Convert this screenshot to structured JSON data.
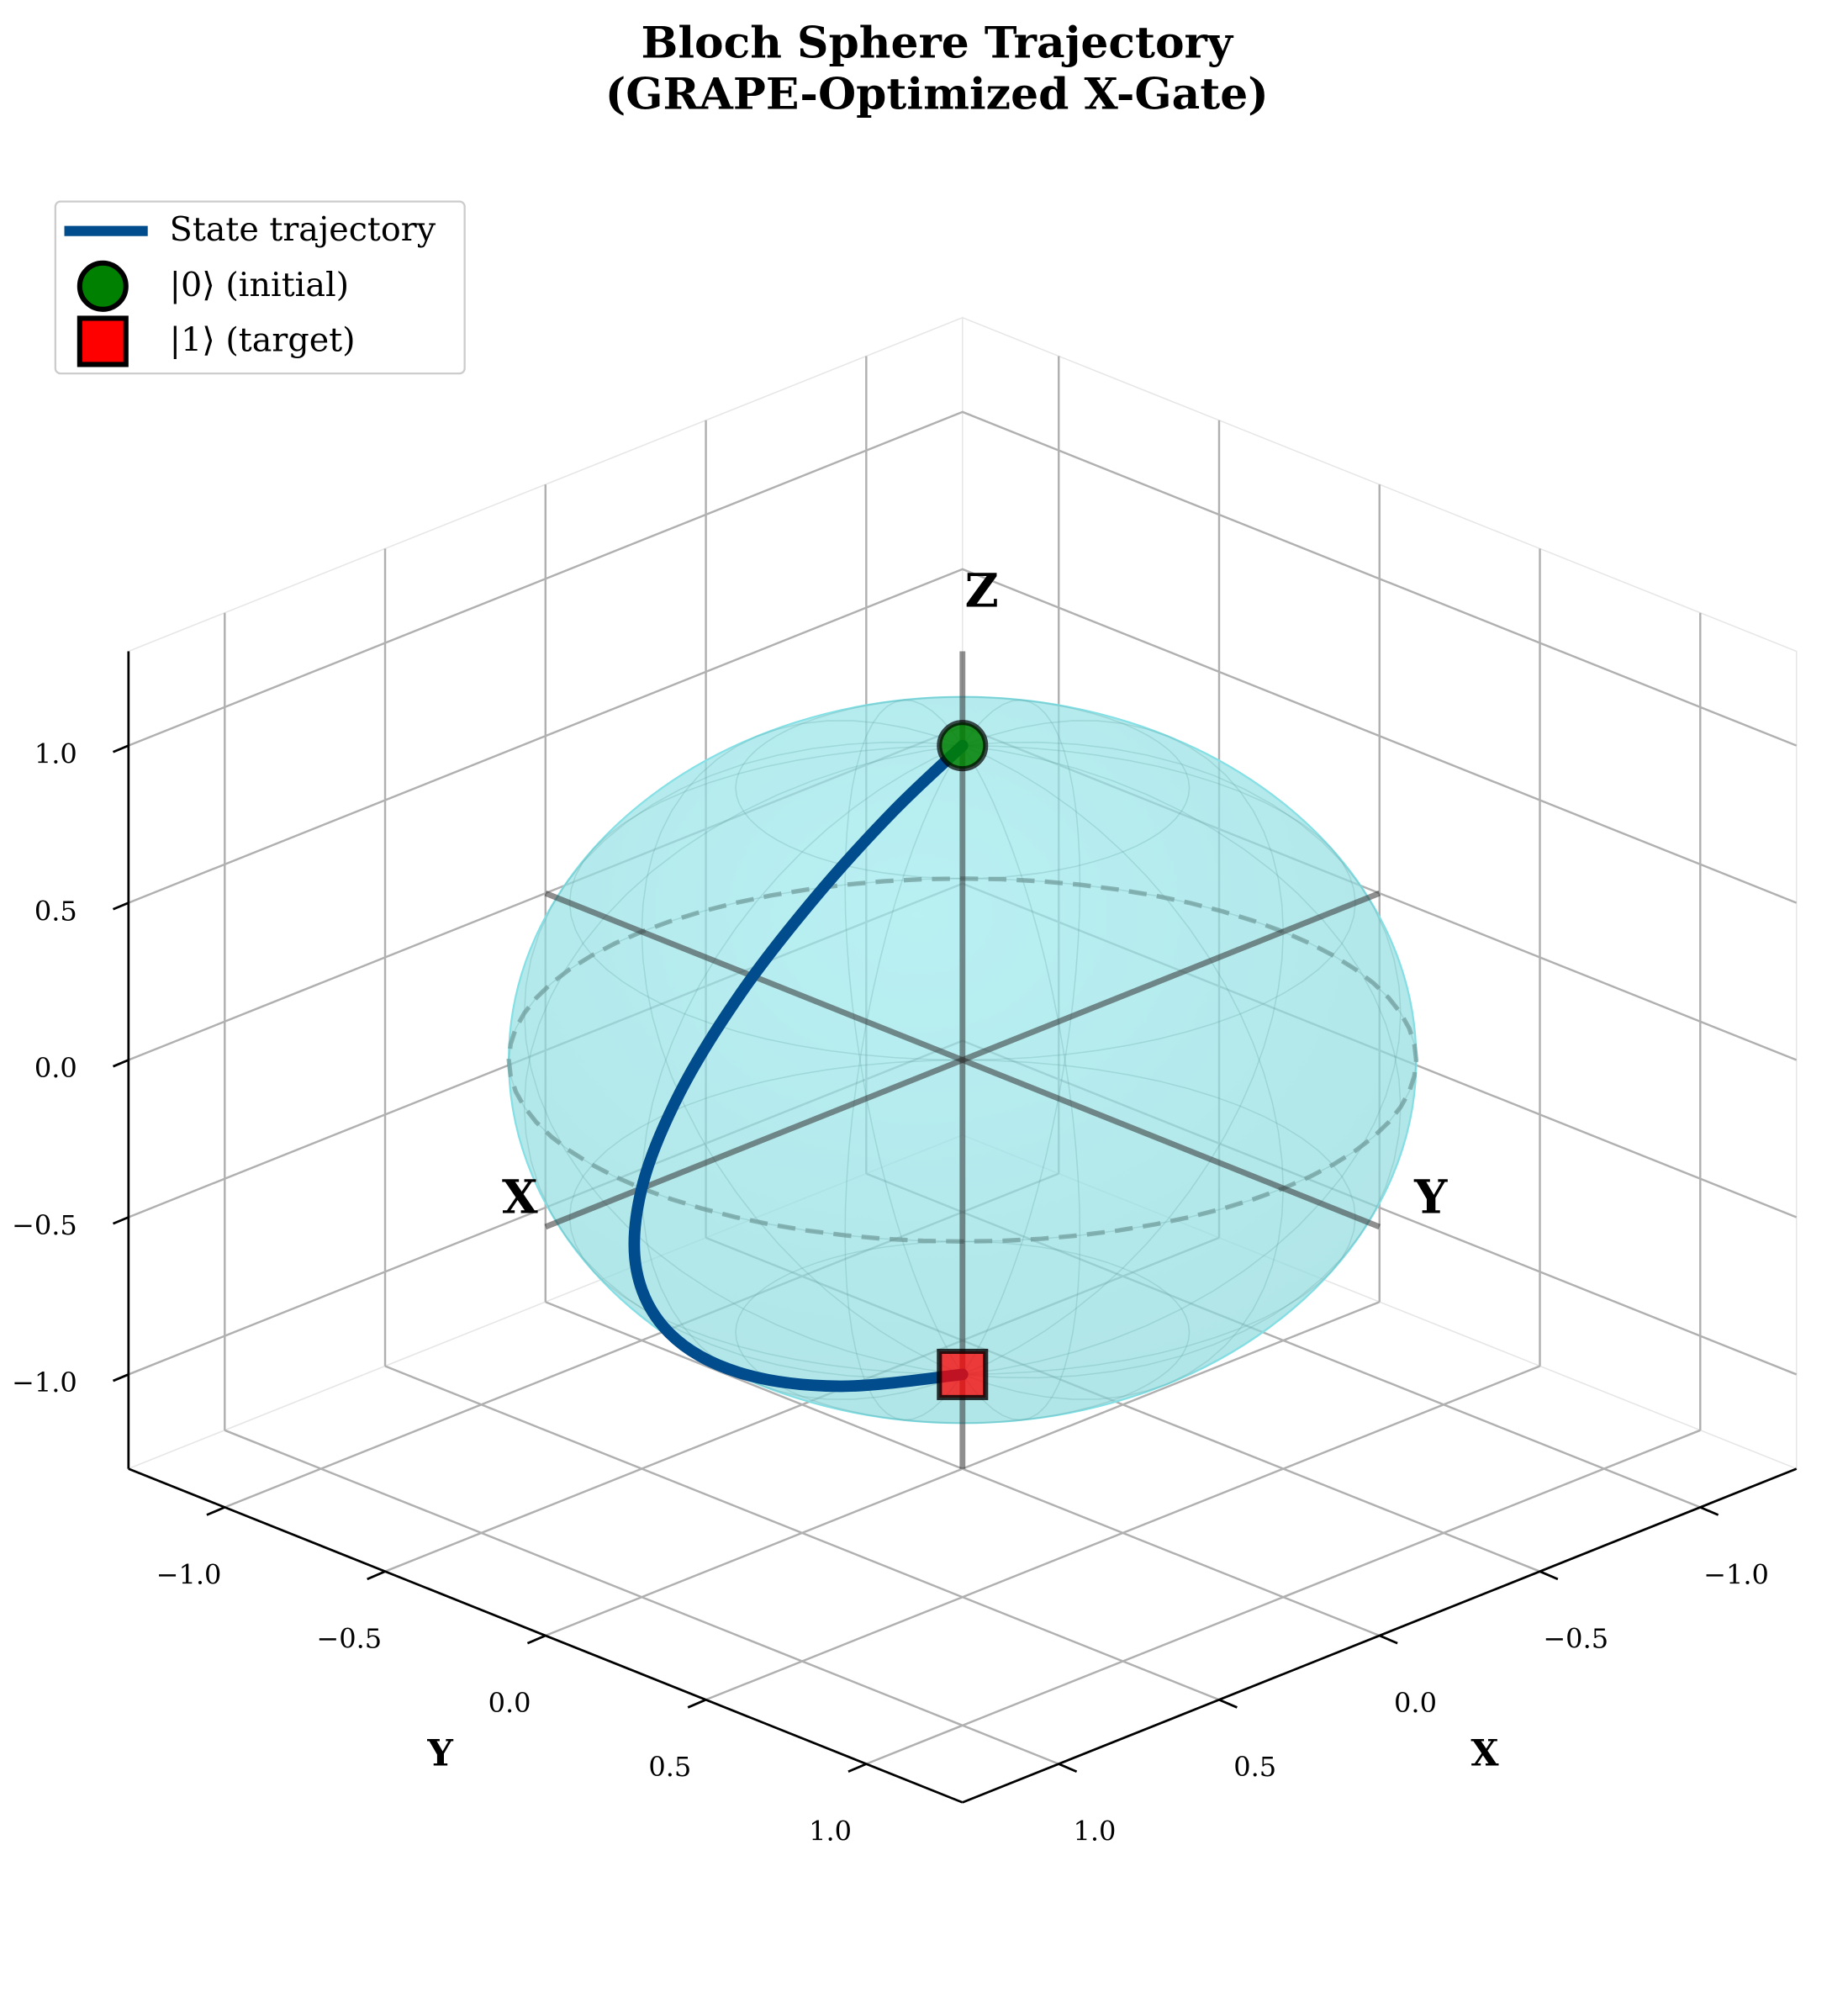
{
  "chart_data": {
    "type": "bloch3d",
    "title": [
      "Bloch Sphere Trajectory",
      "(GRAPE-Optimized X-Gate)"
    ],
    "xlabel": "X",
    "ylabel": "Y",
    "sphere_labels": {
      "x": "X",
      "y": "Y",
      "z": "Z"
    },
    "xlim": [
      -1.3,
      1.3
    ],
    "ylim": [
      -1.3,
      1.3
    ],
    "zlim": [
      -1.3,
      1.3
    ],
    "xticks": [
      {
        "value": -1,
        "label": "−1.0"
      },
      {
        "value": -0.5,
        "label": "−0.5"
      },
      {
        "value": 0,
        "label": "0.0"
      },
      0.5,
      {
        "value": 1,
        "label": "1.0"
      }
    ],
    "yticks": [
      {
        "value": -1,
        "label": "−1.0"
      },
      {
        "value": -0.5,
        "label": "−0.5"
      },
      {
        "value": 0,
        "label": "0.0"
      },
      0.5,
      {
        "value": 1,
        "label": "1.0"
      }
    ],
    "zticks": [
      {
        "value": -1,
        "label": "−1.0"
      },
      {
        "value": -0.5,
        "label": "−0.5"
      },
      {
        "value": 0,
        "label": "0.0"
      },
      0.5,
      {
        "value": 1,
        "label": "1.0"
      }
    ],
    "grid": true,
    "legend": "upper left",
    "sphere_color": "#7fe0e6",
    "series": [
      {
        "name": "State trajectory",
        "marker": "line",
        "color": "#004c8c",
        "x": [
          0,
          0.297,
          0.575,
          0.801,
          0.949,
          1,
          0.949,
          0.801,
          0.575,
          0.297,
          0
        ],
        "y": [
          0,
          0.085,
          0.122,
          0.112,
          0.067,
          0,
          -0.067,
          -0.112,
          -0.122,
          -0.085,
          0
        ],
        "z": [
          1,
          0.951,
          0.809,
          0.588,
          0.309,
          0,
          -0.309,
          -0.588,
          -0.809,
          -0.951,
          -1
        ]
      },
      {
        "name": "|0⟩ (initial)",
        "marker": "circle",
        "color": "#008000",
        "x": [
          0
        ],
        "y": [
          0
        ],
        "z": [
          1
        ]
      },
      {
        "name": "|1⟩ (target)",
        "marker": "square",
        "color": "#ff0000",
        "x": [
          0
        ],
        "y": [
          0
        ],
        "z": [
          -1
        ]
      }
    ]
  }
}
